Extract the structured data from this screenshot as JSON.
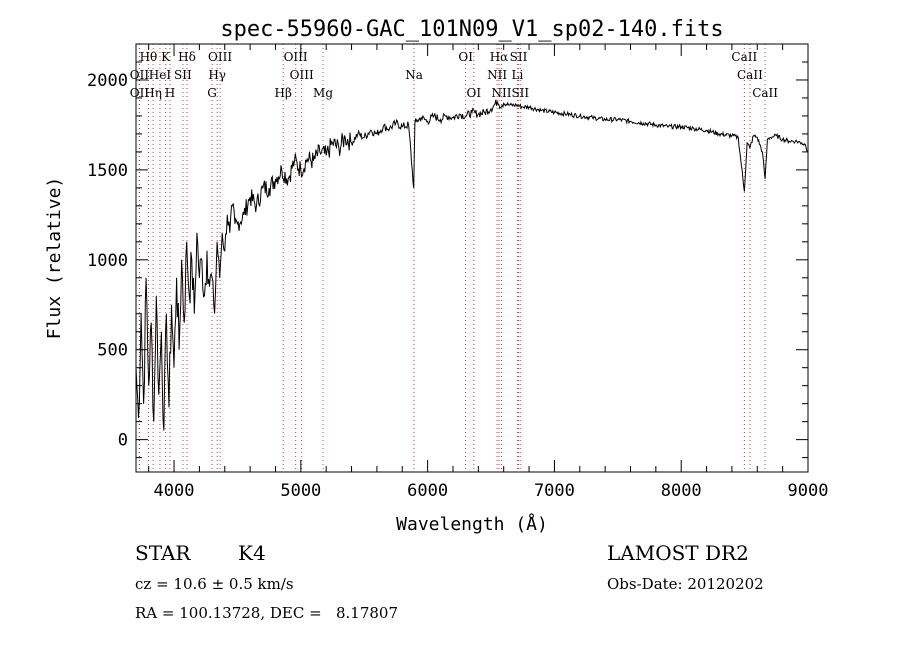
{
  "chart_data": {
    "type": "line",
    "title": "spec-55960-GAC_101N09_V1_sp02-140.fits",
    "xlabel": "Wavelength (Å)",
    "ylabel": "Flux (relative)",
    "xlim": [
      3700,
      9000
    ],
    "ylim": [
      -180,
      2200
    ],
    "x_ticks": [
      4000,
      5000,
      6000,
      7000,
      8000,
      9000
    ],
    "y_ticks": [
      0,
      500,
      1000,
      1500,
      2000
    ],
    "grid": false,
    "series": [
      {
        "x": [
          3700,
          3720,
          3740,
          3760,
          3780,
          3800,
          3820,
          3840,
          3860,
          3880,
          3900,
          3920,
          3940,
          3960,
          3980,
          4000,
          4020,
          4040,
          4060,
          4080,
          4100,
          4120,
          4140,
          4160,
          4180,
          4200,
          4220,
          4240,
          4260,
          4280,
          4300,
          4320,
          4340,
          4360,
          4380,
          4400,
          4420,
          4440,
          4460,
          4480,
          4500,
          4550,
          4600,
          4650,
          4700,
          4750,
          4800,
          4850,
          4900,
          4950,
          5000,
          5050,
          5100,
          5150,
          5200,
          5250,
          5300,
          5350,
          5400,
          5450,
          5500,
          5550,
          5600,
          5650,
          5700,
          5750,
          5800,
          5850,
          5890,
          5900,
          5910,
          5950,
          6000,
          6050,
          6100,
          6150,
          6200,
          6250,
          6300,
          6350,
          6400,
          6450,
          6500,
          6550,
          6563,
          6600,
          6650,
          6700,
          6750,
          6800,
          6900,
          7000,
          7100,
          7200,
          7300,
          7400,
          7500,
          7600,
          7700,
          7800,
          7900,
          8000,
          8100,
          8200,
          8300,
          8400,
          8450,
          8498,
          8520,
          8542,
          8570,
          8600,
          8640,
          8662,
          8680,
          8700,
          8750,
          8800,
          8850,
          8900,
          8950,
          8980,
          9000
        ],
        "values": [
          400,
          120,
          700,
          200,
          900,
          300,
          650,
          100,
          800,
          250,
          600,
          50,
          700,
          180,
          750,
          400,
          900,
          500,
          1000,
          650,
          1100,
          800,
          1000,
          700,
          1150,
          900,
          1000,
          800,
          1050,
          850,
          900,
          700,
          1100,
          900,
          1150,
          1050,
          1250,
          1150,
          1300,
          1200,
          1200,
          1250,
          1350,
          1300,
          1400,
          1400,
          1450,
          1500,
          1450,
          1550,
          1500,
          1560,
          1550,
          1600,
          1580,
          1650,
          1620,
          1680,
          1650,
          1700,
          1680,
          1720,
          1700,
          1740,
          1730,
          1760,
          1740,
          1750,
          1400,
          1760,
          1770,
          1790,
          1770,
          1800,
          1780,
          1800,
          1790,
          1810,
          1800,
          1820,
          1810,
          1820,
          1840,
          1880,
          1860,
          1870,
          1860,
          1860,
          1850,
          1850,
          1830,
          1820,
          1810,
          1800,
          1790,
          1780,
          1780,
          1770,
          1760,
          1750,
          1740,
          1740,
          1730,
          1720,
          1700,
          1690,
          1680,
          1380,
          1650,
          1620,
          1690,
          1680,
          1600,
          1450,
          1670,
          1680,
          1690,
          1670,
          1660,
          1660,
          1650,
          1640,
          1600
        ]
      }
    ],
    "line_labels": [
      {
        "text": "Hθ",
        "x": 3798,
        "row": 0
      },
      {
        "text": "K",
        "x": 3934,
        "row": 0
      },
      {
        "text": "Hδ",
        "x": 4102,
        "row": 0
      },
      {
        "text": "OIII",
        "x": 4363,
        "row": 0
      },
      {
        "text": "OIII",
        "x": 4959,
        "row": 0
      },
      {
        "text": "OI",
        "x": 6300,
        "row": 0
      },
      {
        "text": "Hα",
        "x": 6563,
        "row": 0
      },
      {
        "text": "SII",
        "x": 6717,
        "row": 0
      },
      {
        "text": "CaII",
        "x": 8498,
        "row": 0
      },
      {
        "text": "OII",
        "x": 3727,
        "row": 1
      },
      {
        "text": "HeI",
        "x": 3889,
        "row": 1
      },
      {
        "text": "SII",
        "x": 4070,
        "row": 1
      },
      {
        "text": "Hγ",
        "x": 4340,
        "row": 1
      },
      {
        "text": "OIII",
        "x": 5007,
        "row": 1
      },
      {
        "text": "Na",
        "x": 5893,
        "row": 1
      },
      {
        "text": "NII",
        "x": 6548,
        "row": 1
      },
      {
        "text": "Li",
        "x": 6708,
        "row": 1
      },
      {
        "text": "CaII",
        "x": 8542,
        "row": 1
      },
      {
        "text": "OII",
        "x": 3727,
        "row": 2
      },
      {
        "text": "Hη",
        "x": 3835,
        "row": 2
      },
      {
        "text": "H",
        "x": 3968,
        "row": 2
      },
      {
        "text": "G",
        "x": 4300,
        "row": 2
      },
      {
        "text": "Hβ",
        "x": 4861,
        "row": 2
      },
      {
        "text": "Mg",
        "x": 5175,
        "row": 2
      },
      {
        "text": "OI",
        "x": 6364,
        "row": 2
      },
      {
        "text": "NII",
        "x": 6583,
        "row": 2
      },
      {
        "text": "SII",
        "x": 6731,
        "row": 2
      },
      {
        "text": "CaII",
        "x": 8662,
        "row": 2
      }
    ]
  },
  "info": {
    "object_class": "STAR",
    "subclass": "K4",
    "survey": "LAMOST DR2",
    "cz": "cz = 10.6 ± 0.5 km/s",
    "obs_date": "Obs-Date: 20120202",
    "coords": "RA = 100.13728, DEC =   8.17807"
  }
}
